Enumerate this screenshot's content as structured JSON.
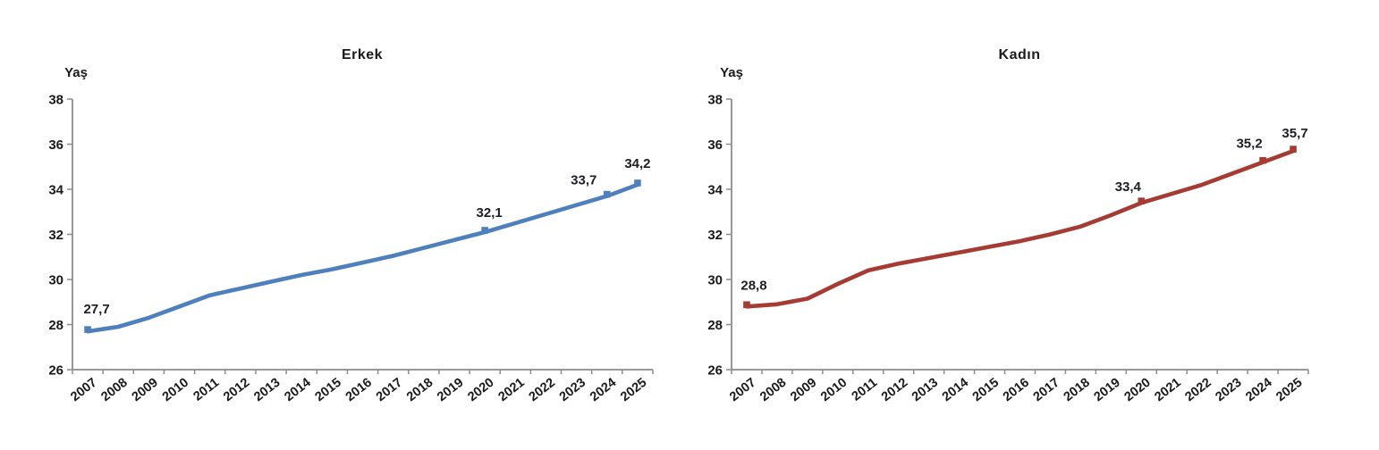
{
  "chart_data": [
    {
      "type": "line",
      "title": "Erkek",
      "ylabel": "Yaş",
      "categories": [
        "2007",
        "2008",
        "2009",
        "2010",
        "2011",
        "2012",
        "2013",
        "2014",
        "2015",
        "2016",
        "2017",
        "2018",
        "2019",
        "2020",
        "2021",
        "2022",
        "2023",
        "2024",
        "2025"
      ],
      "values": [
        27.7,
        27.9,
        28.3,
        28.8,
        29.3,
        29.6,
        29.9,
        30.2,
        30.45,
        30.75,
        31.05,
        31.4,
        31.75,
        32.1,
        32.5,
        32.9,
        33.3,
        33.7,
        34.2
      ],
      "ylim": [
        26,
        38
      ],
      "yticks": [
        "38",
        "36",
        "34",
        "32",
        "30",
        "28",
        "26"
      ],
      "grid": false,
      "legend": "none",
      "line_color": "#4D80BC",
      "marker": "square",
      "data_labels": [
        {
          "category": "2007",
          "text": "27,7"
        },
        {
          "category": "2020",
          "text": "32,1"
        },
        {
          "category": "2024",
          "text": "33,7"
        },
        {
          "category": "2025",
          "text": "34,2"
        }
      ]
    },
    {
      "type": "line",
      "title": "Kadın",
      "ylabel": "Yaş",
      "categories": [
        "2007",
        "2008",
        "2009",
        "2010",
        "2011",
        "2012",
        "2013",
        "2014",
        "2015",
        "2016",
        "2017",
        "2018",
        "2019",
        "2020",
        "2021",
        "2022",
        "2023",
        "2024",
        "2025"
      ],
      "values": [
        28.8,
        28.9,
        29.15,
        29.8,
        30.4,
        30.7,
        30.95,
        31.2,
        31.45,
        31.7,
        32.0,
        32.35,
        32.85,
        33.4,
        33.8,
        34.2,
        34.7,
        35.2,
        35.7
      ],
      "ylim": [
        26,
        38
      ],
      "yticks": [
        "38",
        "36",
        "34",
        "32",
        "30",
        "28",
        "26"
      ],
      "grid": false,
      "legend": "none",
      "line_color": "#A53B32",
      "marker": "square",
      "data_labels": [
        {
          "category": "2007",
          "text": "28,8"
        },
        {
          "category": "2020",
          "text": "33,4"
        },
        {
          "category": "2024",
          "text": "35,2"
        },
        {
          "category": "2025",
          "text": "35,7"
        }
      ]
    }
  ],
  "colors": {
    "axis": "#8C8C8C",
    "tick_label": "#1a1a1a",
    "data_label": "#1d1d26",
    "background": "#ffffff"
  }
}
